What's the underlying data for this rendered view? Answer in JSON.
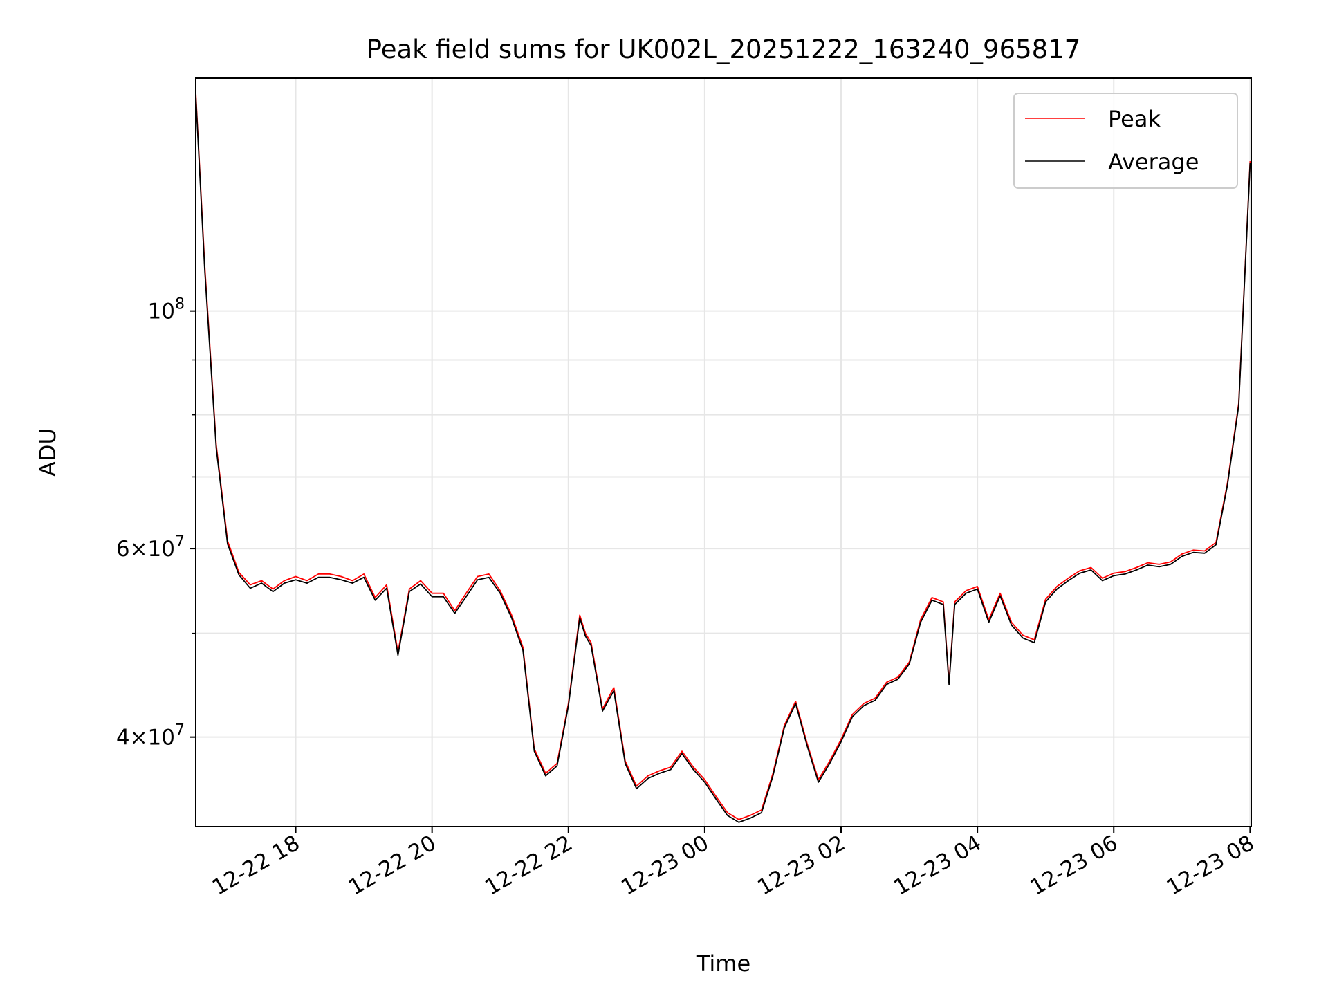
{
  "chart_data": {
    "type": "line",
    "title": "Peak field sums for UK002L_20251222_163240_965817",
    "xlabel": "Time",
    "ylabel": "ADU",
    "yscale": "log",
    "ylim": [
      33000000,
      165000000
    ],
    "xlim": [
      "2025-12-22 16:32",
      "2025-12-23 08:01"
    ],
    "grid": true,
    "legend_position": "top-right",
    "x_tick_labels": [
      "12-22 18",
      "12-22 20",
      "12-22 22",
      "12-23 00",
      "12-23 02",
      "12-23 04",
      "12-23 06",
      "12-23 08"
    ],
    "x_tick_times": [
      "2025-12-22 18:00",
      "2025-12-22 20:00",
      "2025-12-22 22:00",
      "2025-12-23 00:00",
      "2025-12-23 02:00",
      "2025-12-23 04:00",
      "2025-12-23 06:00",
      "2025-12-23 08:00"
    ],
    "y_major_ticks": [
      {
        "value": 100000000,
        "mantissa": "",
        "base": "10",
        "exp": "8"
      },
      {
        "value": 60000000,
        "mantissa": "6×",
        "base": "10",
        "exp": "7"
      },
      {
        "value": 40000000,
        "mantissa": "4×",
        "base": "10",
        "exp": "7"
      }
    ],
    "y_minor_ticks": [
      50000000,
      70000000,
      80000000,
      90000000
    ],
    "x": [
      "2025-12-22 16:32",
      "2025-12-22 16:40",
      "2025-12-22 16:50",
      "2025-12-22 17:00",
      "2025-12-22 17:10",
      "2025-12-22 17:20",
      "2025-12-22 17:30",
      "2025-12-22 17:40",
      "2025-12-22 17:50",
      "2025-12-22 18:00",
      "2025-12-22 18:10",
      "2025-12-22 18:20",
      "2025-12-22 18:30",
      "2025-12-22 18:40",
      "2025-12-22 18:50",
      "2025-12-22 19:00",
      "2025-12-22 19:10",
      "2025-12-22 19:20",
      "2025-12-22 19:30",
      "2025-12-22 19:40",
      "2025-12-22 19:50",
      "2025-12-22 20:00",
      "2025-12-22 20:10",
      "2025-12-22 20:20",
      "2025-12-22 20:30",
      "2025-12-22 20:40",
      "2025-12-22 20:50",
      "2025-12-22 21:00",
      "2025-12-22 21:10",
      "2025-12-22 21:20",
      "2025-12-22 21:30",
      "2025-12-22 21:40",
      "2025-12-22 21:50",
      "2025-12-22 22:00",
      "2025-12-22 22:10",
      "2025-12-22 22:15",
      "2025-12-22 22:20",
      "2025-12-22 22:30",
      "2025-12-22 22:40",
      "2025-12-22 22:50",
      "2025-12-22 23:00",
      "2025-12-22 23:10",
      "2025-12-22 23:20",
      "2025-12-22 23:30",
      "2025-12-22 23:40",
      "2025-12-22 23:50",
      "2025-12-23 00:00",
      "2025-12-23 00:10",
      "2025-12-23 00:20",
      "2025-12-23 00:30",
      "2025-12-23 00:40",
      "2025-12-23 00:50",
      "2025-12-23 01:00",
      "2025-12-23 01:10",
      "2025-12-23 01:20",
      "2025-12-23 01:30",
      "2025-12-23 01:40",
      "2025-12-23 01:50",
      "2025-12-23 02:00",
      "2025-12-23 02:10",
      "2025-12-23 02:20",
      "2025-12-23 02:30",
      "2025-12-23 02:40",
      "2025-12-23 02:50",
      "2025-12-23 03:00",
      "2025-12-23 03:10",
      "2025-12-23 03:20",
      "2025-12-23 03:30",
      "2025-12-23 03:35",
      "2025-12-23 03:40",
      "2025-12-23 03:50",
      "2025-12-23 04:00",
      "2025-12-23 04:10",
      "2025-12-23 04:20",
      "2025-12-23 04:30",
      "2025-12-23 04:40",
      "2025-12-23 04:50",
      "2025-12-23 05:00",
      "2025-12-23 05:10",
      "2025-12-23 05:20",
      "2025-12-23 05:30",
      "2025-12-23 05:40",
      "2025-12-23 05:50",
      "2025-12-23 06:00",
      "2025-12-23 06:10",
      "2025-12-23 06:20",
      "2025-12-23 06:30",
      "2025-12-23 06:40",
      "2025-12-23 06:50",
      "2025-12-23 07:00",
      "2025-12-23 07:10",
      "2025-12-23 07:20",
      "2025-12-23 07:30",
      "2025-12-23 07:40",
      "2025-12-23 07:50",
      "2025-12-23 08:00"
    ],
    "series": [
      {
        "name": "Peak",
        "color": "#ff0000",
        "values": [
          160000000,
          110000000,
          75000000,
          61000000,
          57000000,
          55500000,
          56000000,
          55000000,
          56000000,
          56500000,
          56000000,
          56800000,
          56800000,
          56500000,
          56000000,
          56800000,
          54000000,
          55500000,
          48000000,
          55000000,
          56000000,
          54500000,
          54500000,
          52500000,
          54500000,
          56500000,
          56800000,
          54800000,
          52000000,
          48500000,
          39000000,
          37000000,
          37800000,
          43000000,
          52000000,
          50000000,
          49000000,
          42500000,
          44500000,
          38000000,
          36000000,
          36800000,
          37200000,
          37500000,
          38800000,
          37500000,
          36500000,
          35200000,
          34000000,
          33500000,
          33800000,
          34200000,
          37000000,
          41000000,
          43200000,
          39500000,
          36500000,
          38000000,
          39800000,
          42000000,
          43000000,
          43500000,
          45000000,
          45500000,
          47000000,
          51500000,
          54000000,
          53500000,
          45000000,
          53500000,
          54800000,
          55300000,
          51500000,
          54500000,
          51200000,
          49800000,
          49300000,
          53800000,
          55300000,
          56300000,
          57200000,
          57600000,
          56300000,
          56900000,
          57100000,
          57600000,
          58200000,
          58000000,
          58300000,
          59300000,
          59800000,
          59700000,
          60800000,
          69000000,
          82000000,
          138000000
        ]
      },
      {
        "name": "Average",
        "color": "#000000",
        "values": [
          159000000,
          109000000,
          74500000,
          60600000,
          56700000,
          55100000,
          55700000,
          54700000,
          55700000,
          56100000,
          55700000,
          56400000,
          56400000,
          56100000,
          55700000,
          56400000,
          53700000,
          55100000,
          47700000,
          54700000,
          55600000,
          54100000,
          54100000,
          52200000,
          54100000,
          56100000,
          56400000,
          54500000,
          51700000,
          48200000,
          38800000,
          36800000,
          37600000,
          42800000,
          51700000,
          49700000,
          48700000,
          42300000,
          44200000,
          37800000,
          35800000,
          36600000,
          37000000,
          37300000,
          38600000,
          37300000,
          36300000,
          35000000,
          33800000,
          33300000,
          33600000,
          34000000,
          36800000,
          40800000,
          43000000,
          39300000,
          36300000,
          37800000,
          39600000,
          41800000,
          42800000,
          43300000,
          44800000,
          45300000,
          46800000,
          51200000,
          53700000,
          53200000,
          44800000,
          53200000,
          54500000,
          55000000,
          51200000,
          54200000,
          50900000,
          49500000,
          49000000,
          53500000,
          55000000,
          56000000,
          56900000,
          57300000,
          56000000,
          56600000,
          56800000,
          57300000,
          57900000,
          57700000,
          58000000,
          59000000,
          59500000,
          59400000,
          60500000,
          68700000,
          81600000,
          137500000
        ]
      }
    ]
  }
}
